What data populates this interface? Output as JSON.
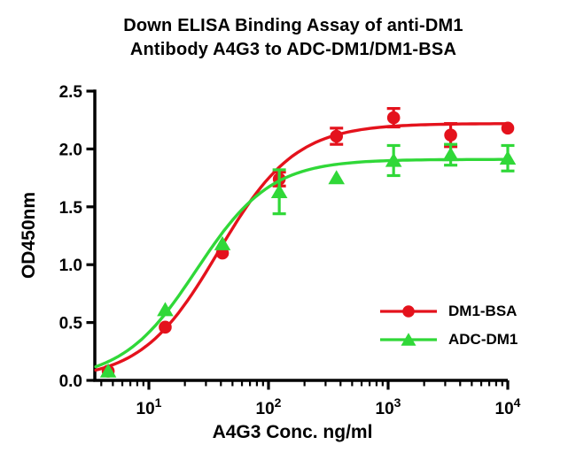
{
  "title": {
    "line1": "Down ELISA Binding Assay of anti-DM1",
    "line2": "Antibody A4G3 to ADC-DM1/DM1-BSA"
  },
  "chart_data": {
    "type": "scatter",
    "title": "Down ELISA Binding Assay of anti-DM1 Antibody A4G3 to ADC-DM1/DM1-BSA",
    "xlabel": "A4G3 Conc. ng/ml",
    "ylabel": "OD450nm",
    "x_scale": "log10",
    "xlim": [
      3.6,
      10000
    ],
    "ylim": [
      0,
      2.5
    ],
    "y_ticks": [
      "0.0",
      "0.5",
      "1.0",
      "1.5",
      "2.0",
      "2.5"
    ],
    "x_major_tick_base": "10",
    "x_major_exponents": [
      1,
      2,
      3,
      4
    ],
    "grid": false,
    "legend_position": "inside lower right",
    "axis_color": "#000000",
    "series": [
      {
        "name": "DM1-BSA",
        "color": "#e4121c",
        "marker": "circle",
        "x": [
          4.57,
          13.7,
          41.2,
          123,
          370,
          1111,
          3333,
          10000
        ],
        "y": [
          0.08,
          0.46,
          1.1,
          1.74,
          2.11,
          2.27,
          2.12,
          2.18
        ],
        "y_err": [
          0,
          0,
          0,
          0.06,
          0.07,
          0.08,
          0.1,
          0
        ],
        "fit_4pl": {
          "bottom": 0,
          "top": 2.22,
          "ec50": 38,
          "hill": 1.35
        }
      },
      {
        "name": "ADC-DM1",
        "color": "#30d838",
        "marker": "triangle",
        "x": [
          4.57,
          13.7,
          41.2,
          123,
          370,
          1111,
          3333,
          10000
        ],
        "y": [
          0.08,
          0.61,
          1.18,
          1.63,
          1.75,
          1.9,
          1.95,
          1.92
        ],
        "y_err": [
          0,
          0,
          0,
          0.19,
          0,
          0.13,
          0.09,
          0.11
        ],
        "fit_4pl": {
          "bottom": 0,
          "top": 1.91,
          "ec50": 25,
          "hill": 1.4
        }
      }
    ]
  }
}
